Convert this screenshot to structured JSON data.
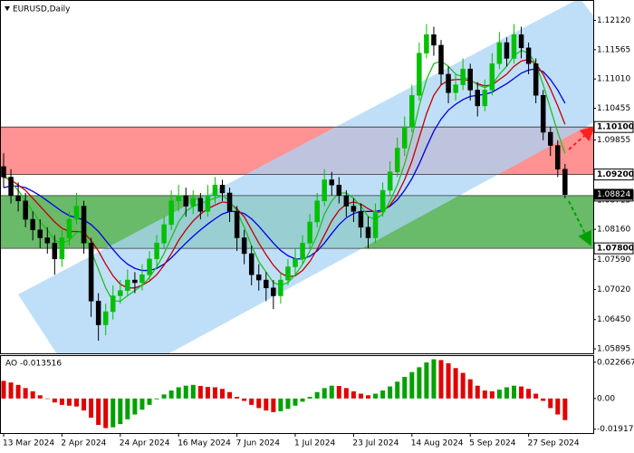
{
  "chart_data": [
    {
      "type": "candlestick",
      "title": "EURUSD,Daily",
      "categories": [
        "13 Mar 2024",
        null,
        null,
        null,
        null,
        null,
        null,
        null,
        "2 Apr 2024",
        null,
        null,
        null,
        null,
        null,
        null,
        null,
        "24 Apr 2024",
        null,
        null,
        null,
        null,
        null,
        null,
        null,
        "16 May 2024",
        null,
        null,
        null,
        null,
        null,
        null,
        null,
        "7 Jun 2024",
        null,
        null,
        null,
        null,
        null,
        null,
        null,
        "1 Jul 2024",
        null,
        null,
        null,
        null,
        null,
        null,
        null,
        "23 Jul 2024",
        null,
        null,
        null,
        null,
        null,
        null,
        null,
        "14 Aug 2024",
        null,
        null,
        null,
        null,
        null,
        null,
        null,
        "5 Sep 2024",
        null,
        null,
        null,
        null,
        null,
        null,
        null,
        "27 Sep 2024",
        null,
        null,
        null,
        null,
        null
      ],
      "open": [
        1.0935,
        1.0915,
        1.088,
        1.087,
        1.0835,
        1.0815,
        1.08,
        1.079,
        1.076,
        1.08,
        1.0835,
        1.086,
        1.079,
        1.068,
        1.0635,
        1.066,
        1.069,
        1.07,
        1.072,
        1.0715,
        1.073,
        1.076,
        1.079,
        1.0825,
        1.087,
        1.088,
        1.086,
        1.0875,
        1.085,
        1.088,
        1.09,
        1.0885,
        1.085,
        1.08,
        1.077,
        1.073,
        1.072,
        1.0705,
        1.069,
        1.072,
        1.0745,
        1.076,
        1.079,
        1.083,
        1.087,
        1.091,
        1.09,
        1.088,
        1.086,
        1.085,
        1.082,
        1.08,
        1.085,
        1.089,
        1.0925,
        1.097,
        1.101,
        1.107,
        1.115,
        1.1185,
        1.1165,
        1.111,
        1.1075,
        1.109,
        1.112,
        1.108,
        1.105,
        1.108,
        1.113,
        1.117,
        1.114,
        1.1185,
        1.116,
        1.113,
        1.107,
        1.1,
        1.0975,
        1.093
      ],
      "high": [
        1.096,
        1.093,
        1.0905,
        1.0885,
        1.085,
        1.0835,
        1.082,
        1.0805,
        1.0815,
        1.085,
        1.0885,
        1.087,
        1.08,
        1.0695,
        1.0675,
        1.071,
        1.072,
        1.074,
        1.0735,
        1.075,
        1.0775,
        1.0805,
        1.084,
        1.089,
        1.09,
        1.0895,
        1.089,
        1.0885,
        1.09,
        1.0915,
        1.091,
        1.0895,
        1.086,
        1.0815,
        1.0785,
        1.075,
        1.0735,
        1.072,
        1.0735,
        1.076,
        1.078,
        1.0805,
        1.0845,
        1.0885,
        1.093,
        1.0925,
        1.0915,
        1.089,
        1.0875,
        1.0865,
        1.084,
        1.0865,
        1.0905,
        1.0945,
        1.099,
        1.103,
        1.109,
        1.117,
        1.1205,
        1.12,
        1.1175,
        1.1125,
        1.111,
        1.114,
        1.113,
        1.1095,
        1.11,
        1.115,
        1.119,
        1.118,
        1.1205,
        1.12,
        1.117,
        1.114,
        1.108,
        1.101,
        1.0985,
        1.094
      ],
      "low": [
        1.0895,
        1.0865,
        1.085,
        1.082,
        1.0795,
        1.078,
        1.077,
        1.073,
        1.0745,
        1.0785,
        1.0825,
        1.077,
        1.065,
        1.0605,
        1.0615,
        1.0645,
        1.0675,
        1.069,
        1.0695,
        1.07,
        1.072,
        1.0745,
        1.078,
        1.0815,
        1.085,
        1.084,
        1.0845,
        1.0835,
        1.084,
        1.0865,
        1.087,
        1.083,
        1.0775,
        1.075,
        1.071,
        1.07,
        1.068,
        1.0665,
        1.0675,
        1.071,
        1.073,
        1.075,
        1.078,
        1.082,
        1.086,
        1.088,
        1.0865,
        1.084,
        1.083,
        1.08,
        1.078,
        1.079,
        1.084,
        1.088,
        1.0915,
        1.0955,
        1.1,
        1.106,
        1.114,
        1.1145,
        1.109,
        1.1055,
        1.106,
        1.108,
        1.106,
        1.103,
        1.104,
        1.107,
        1.112,
        1.1125,
        1.113,
        1.114,
        1.111,
        1.1055,
        1.0985,
        1.0955,
        1.0915,
        1.0875
      ],
      "close": [
        1.0915,
        1.088,
        1.087,
        1.0835,
        1.0815,
        1.08,
        1.079,
        1.076,
        1.08,
        1.0835,
        1.086,
        1.079,
        1.068,
        1.0635,
        1.066,
        1.069,
        1.07,
        1.072,
        1.0715,
        1.073,
        1.076,
        1.079,
        1.0825,
        1.087,
        1.088,
        1.086,
        1.0875,
        1.085,
        1.088,
        1.09,
        1.0885,
        1.085,
        1.08,
        1.077,
        1.073,
        1.072,
        1.0705,
        1.069,
        1.072,
        1.0745,
        1.076,
        1.079,
        1.083,
        1.087,
        1.091,
        1.09,
        1.088,
        1.086,
        1.085,
        1.082,
        1.08,
        1.085,
        1.089,
        1.0925,
        1.097,
        1.101,
        1.107,
        1.115,
        1.1185,
        1.1165,
        1.111,
        1.1075,
        1.109,
        1.112,
        1.108,
        1.105,
        1.108,
        1.113,
        1.117,
        1.114,
        1.1185,
        1.116,
        1.113,
        1.107,
        1.1,
        1.0975,
        1.093,
        1.0882
      ],
      "up_color": "#00c000",
      "down_color": "#000000",
      "series": [
        {
          "color": "#0000e0",
          "values": [
            1.0895,
            1.0898,
            1.0898,
            1.0895,
            1.0888,
            1.088,
            1.087,
            1.086,
            1.085,
            1.0842,
            1.0838,
            1.0834,
            1.0825,
            1.0812,
            1.0795,
            1.0778,
            1.0762,
            1.075,
            1.0742,
            1.0738,
            1.0738,
            1.0742,
            1.075,
            1.0762,
            1.0776,
            1.079,
            1.0803,
            1.0815,
            1.0826,
            1.0836,
            1.0845,
            1.085,
            1.085,
            1.0846,
            1.0836,
            1.0822,
            1.0806,
            1.079,
            1.0776,
            1.0766,
            1.076,
            1.076,
            1.0765,
            1.0775,
            1.079,
            1.0808,
            1.0825,
            1.0838,
            1.0846,
            1.085,
            1.085,
            1.085,
            1.0853,
            1.086,
            1.0872,
            1.089,
            1.0912,
            1.094,
            1.0972,
            1.1002,
            1.1025,
            1.1042,
            1.1053,
            1.1062,
            1.1068,
            1.107,
            1.1072,
            1.1076,
            1.1084,
            1.1092,
            1.1102,
            1.1112,
            1.1118,
            1.112,
            1.1115,
            1.11,
            1.108,
            1.1055
          ]
        },
        {
          "color": "#c00000",
          "values": [
            1.0915,
            1.091,
            1.09,
            1.089,
            1.0875,
            1.086,
            1.0845,
            1.083,
            1.0818,
            1.0812,
            1.0812,
            1.081,
            1.0795,
            1.0775,
            1.075,
            1.0728,
            1.0712,
            1.0705,
            1.0705,
            1.071,
            1.0718,
            1.073,
            1.0748,
            1.077,
            1.0795,
            1.0815,
            1.0832,
            1.0845,
            1.0855,
            1.0862,
            1.0868,
            1.0866,
            1.0855,
            1.084,
            1.0815,
            1.079,
            1.0768,
            1.0748,
            1.0733,
            1.0726,
            1.0728,
            1.0738,
            1.0755,
            1.0778,
            1.0805,
            1.0832,
            1.0852,
            1.0864,
            1.0868,
            1.0864,
            1.0855,
            1.0848,
            1.085,
            1.0862,
            1.0882,
            1.091,
            1.0945,
            1.099,
            1.1035,
            1.107,
            1.109,
            1.1098,
            1.11,
            1.11,
            1.1098,
            1.1092,
            1.1088,
            1.109,
            1.11,
            1.111,
            1.1125,
            1.1135,
            1.1138,
            1.113,
            1.111,
            1.1082,
            1.105,
            1.1015
          ]
        },
        {
          "color": "#20c020",
          "values": [
            1.092,
            1.0905,
            1.089,
            1.087,
            1.085,
            1.083,
            1.0815,
            1.0795,
            1.079,
            1.0795,
            1.081,
            1.081,
            1.0775,
            1.074,
            1.0705,
            1.068,
            1.068,
            1.069,
            1.07,
            1.071,
            1.0725,
            1.0745,
            1.077,
            1.08,
            1.083,
            1.085,
            1.086,
            1.0865,
            1.087,
            1.0875,
            1.088,
            1.087,
            1.085,
            1.082,
            1.0785,
            1.0755,
            1.0735,
            1.0715,
            1.071,
            1.0715,
            1.073,
            1.075,
            1.0775,
            1.0805,
            1.0845,
            1.087,
            1.0885,
            1.0885,
            1.0875,
            1.086,
            1.084,
            1.0835,
            1.0845,
            1.087,
            1.09,
            1.094,
            1.099,
            1.105,
            1.11,
            1.113,
            1.1135,
            1.1125,
            1.111,
            1.1105,
            1.11,
            1.109,
            1.1085,
            1.109,
            1.111,
            1.1125,
            1.1145,
            1.1155,
            1.115,
            1.113,
            1.109,
            1.1045,
            1.1,
            1.096
          ]
        }
      ],
      "ylim": [
        1.0581,
        1.1249
      ],
      "yticks": [
        {
          "value": 1.1212,
          "label": "1.12120"
        },
        {
          "value": 1.11565,
          "label": "1.11565"
        },
        {
          "value": 1.1101,
          "label": "1.11010"
        },
        {
          "value": 1.10455,
          "label": "1.10455"
        },
        {
          "value": 1.09855,
          "label": "1.09855"
        },
        {
          "value": 1.08715,
          "label": "1.08715"
        },
        {
          "value": 1.0816,
          "label": "1.08160"
        },
        {
          "value": 1.0759,
          "label": "1.07590"
        },
        {
          "value": 1.0702,
          "label": "1.07020"
        },
        {
          "value": 1.0645,
          "label": "1.06450"
        },
        {
          "value": 1.05895,
          "label": "1.05895"
        }
      ],
      "zones": [
        {
          "from": 1.092,
          "to": 1.101,
          "color": "#ff7f7f"
        },
        {
          "from": 1.078,
          "to": 1.088,
          "color": "#4fae4f"
        }
      ],
      "levels": [
        {
          "value": 1.101,
          "label": "1.10100"
        },
        {
          "value": 1.092,
          "label": "1.09200"
        },
        {
          "value": 1.088,
          "label": "1.08800"
        },
        {
          "value": 1.078,
          "label": "1.07800"
        }
      ],
      "last_price": {
        "value": 1.08824,
        "label": "1.08824"
      }
    },
    {
      "type": "bar",
      "title": "AO -0.013516",
      "values": [
        0.011,
        0.01,
        0.0085,
        0.0065,
        0.0045,
        0.002,
        0.0,
        -0.0025,
        -0.004,
        -0.0045,
        -0.005,
        -0.0075,
        -0.012,
        -0.0165,
        -0.0185,
        -0.018,
        -0.016,
        -0.013,
        -0.01,
        -0.007,
        -0.004,
        -0.0005,
        0.0025,
        0.005,
        0.007,
        0.008,
        0.0085,
        0.0078,
        0.0072,
        0.007,
        0.006,
        0.004,
        0.001,
        -0.0015,
        -0.004,
        -0.006,
        -0.0075,
        -0.0085,
        -0.008,
        -0.0065,
        -0.0045,
        -0.002,
        0.001,
        0.004,
        0.0065,
        0.008,
        0.0078,
        0.0065,
        0.0045,
        0.003,
        0.002,
        0.003,
        0.005,
        0.0075,
        0.0105,
        0.0135,
        0.0165,
        0.0195,
        0.0225,
        0.0245,
        0.024,
        0.022,
        0.019,
        0.016,
        0.012,
        0.008,
        0.005,
        0.0045,
        0.0055,
        0.007,
        0.008,
        0.0075,
        0.006,
        0.003,
        -0.0015,
        -0.006,
        -0.01,
        -0.0135
      ],
      "up_color": "#00a000",
      "down_color": "#e00000",
      "ylim": [
        -0.0216,
        0.0265
      ],
      "yticks": [
        0.022667,
        {
          "value": 0,
          "label": "0.00"
        },
        -0.019172
      ]
    }
  ]
}
